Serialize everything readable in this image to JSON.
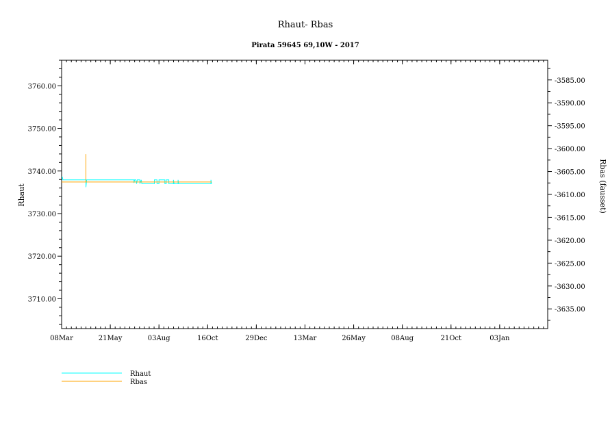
{
  "chart_data": {
    "type": "line",
    "title": "Rhaut-   Rbas",
    "subtitle": "Pirata 59645 69,10W - 2017",
    "ylabel": "Rhaut",
    "y2label": "Rbas (fausset)",
    "xlim": [
      "2017-03-08",
      "2019-03-17"
    ],
    "ylim": [
      3703.0,
      3766.0
    ],
    "y2lim": [
      -3639.3,
      -3580.7
    ],
    "x_ticks": [
      "08Mar",
      "21May",
      "03Aug",
      "16Oct",
      "29Dec",
      "13Mar",
      "26May",
      "08Aug",
      "21Oct",
      "03Jan"
    ],
    "x_tick_dates": [
      "2017-03-08",
      "2017-05-21",
      "2017-08-03",
      "2017-10-16",
      "2017-12-29",
      "2018-03-13",
      "2018-05-26",
      "2018-08-08",
      "2018-10-21",
      "2019-01-03"
    ],
    "y_ticks": [
      3710,
      3720,
      3730,
      3740,
      3750,
      3760
    ],
    "y_tick_labels": [
      "3710.00",
      "3720.00",
      "3730.00",
      "3740.00",
      "3750.00",
      "3760.00"
    ],
    "y2_ticks": [
      -3635,
      -3630,
      -3625,
      -3620,
      -3615,
      -3610,
      -3605,
      -3600,
      -3595,
      -3590,
      -3585
    ],
    "y2_tick_labels": [
      "-3635.00",
      "-3630.00",
      "-3625.00",
      "-3620.00",
      "-3615.00",
      "-3610.00",
      "-3605.00",
      "-3600.00",
      "-3595.00",
      "-3590.00",
      "-3585.00"
    ],
    "grid": false,
    "legend_placement": "bottom-left",
    "series": [
      {
        "name": "Rhaut",
        "axis": "left",
        "color": "#00ffff",
        "points": [
          [
            "2017-03-08",
            3738.6
          ],
          [
            "2017-03-09",
            3738.6
          ],
          [
            "2017-03-10",
            3737.9
          ],
          [
            "2017-04-14",
            3737.9
          ],
          [
            "2017-04-14",
            3736.2
          ],
          [
            "2017-04-15",
            3737.9
          ],
          [
            "2017-06-26",
            3737.9
          ],
          [
            "2017-06-26",
            3737.2
          ],
          [
            "2017-06-27",
            3737.9
          ],
          [
            "2017-06-29",
            3737.9
          ],
          [
            "2017-06-30",
            3737.0
          ],
          [
            "2017-07-01",
            3737.9
          ],
          [
            "2017-07-05",
            3737.9
          ],
          [
            "2017-07-05",
            3737.0
          ],
          [
            "2017-07-07",
            3737.9
          ],
          [
            "2017-07-08",
            3737.0
          ],
          [
            "2017-07-27",
            3737.0
          ],
          [
            "2017-07-27",
            3737.9
          ],
          [
            "2017-07-31",
            3737.9
          ],
          [
            "2017-07-31",
            3737.0
          ],
          [
            "2017-08-03",
            3737.0
          ],
          [
            "2017-08-03",
            3737.9
          ],
          [
            "2017-08-12",
            3737.9
          ],
          [
            "2017-08-12",
            3737.0
          ],
          [
            "2017-08-14",
            3737.0
          ],
          [
            "2017-08-14",
            3737.9
          ],
          [
            "2017-08-18",
            3737.9
          ],
          [
            "2017-08-18",
            3737.0
          ],
          [
            "2017-08-25",
            3737.0
          ],
          [
            "2017-08-25",
            3737.9
          ],
          [
            "2017-08-26",
            3737.0
          ],
          [
            "2017-09-01",
            3737.0
          ],
          [
            "2017-09-01",
            3737.9
          ],
          [
            "2017-09-02",
            3737.0
          ],
          [
            "2017-10-21",
            3737.0
          ],
          [
            "2017-10-21",
            3737.9
          ],
          [
            "2017-10-22",
            3737.0
          ]
        ]
      },
      {
        "name": "Rbas",
        "axis": "right",
        "color": "#ffa500",
        "points": [
          [
            "2017-03-08",
            -3607.3
          ],
          [
            "2017-04-14",
            -3607.3
          ],
          [
            "2017-04-14",
            -3601.2
          ],
          [
            "2017-04-14",
            -3607.3
          ],
          [
            "2017-10-22",
            -3607.3
          ]
        ]
      }
    ]
  }
}
